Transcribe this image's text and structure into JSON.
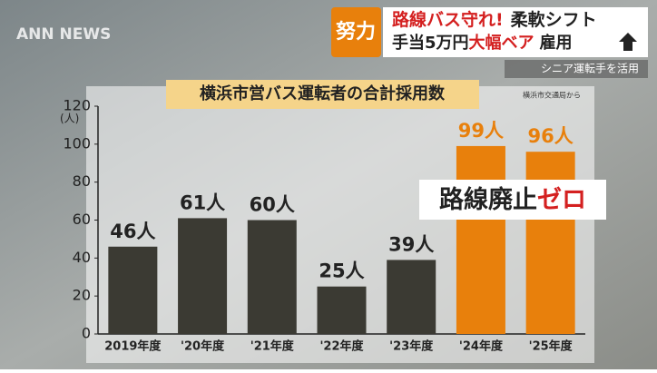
{
  "header": {
    "logo": "ANN NEWS",
    "badge": "努力",
    "line1": [
      "路線バス守れ!",
      "柔軟シフト"
    ],
    "line2": [
      "手当5万円",
      "大幅ベア",
      "雇用"
    ],
    "sub": "シニア運転手を活用"
  },
  "chart_data": {
    "type": "bar",
    "title": "横浜市営バス運転者の合計採用数",
    "source": "横浜市交通局から",
    "y_unit": "(人)",
    "categories": [
      "2019年度",
      "'20年度",
      "'21年度",
      "'22年度",
      "'23年度",
      "'24年度",
      "'25年度"
    ],
    "values": [
      46,
      61,
      60,
      25,
      39,
      99,
      96
    ],
    "value_labels": [
      "46人",
      "61人",
      "60人",
      "25人",
      "39人",
      "99人",
      "96人"
    ],
    "colors": [
      "#3b3a33",
      "#3b3a33",
      "#3b3a33",
      "#3b3a33",
      "#3b3a33",
      "#e8800c",
      "#e8800c"
    ],
    "ylim": [
      0,
      120
    ],
    "yticks": [
      0,
      20,
      40,
      60,
      80,
      100,
      120
    ],
    "grid": false,
    "annotation": [
      "路線廃止",
      "ゼロ"
    ]
  }
}
